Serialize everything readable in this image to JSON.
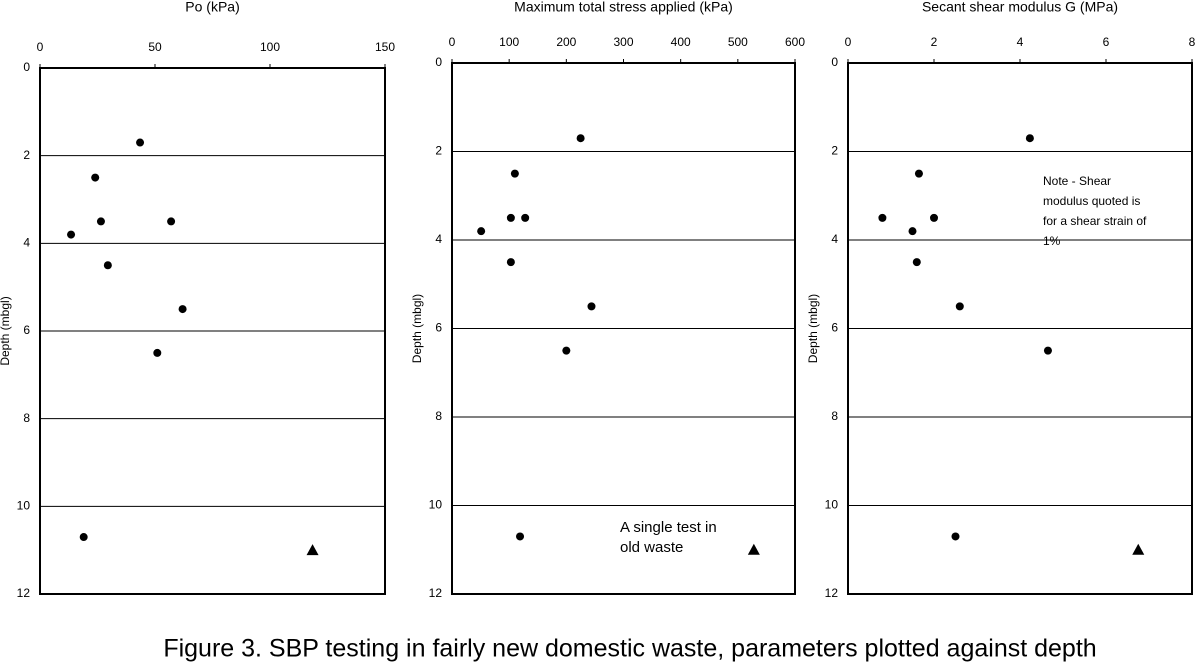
{
  "chart_data": [
    {
      "type": "scatter",
      "title": "Po (kPa)",
      "y_label": "Depth (mbgl)",
      "y_inverted": true,
      "x_axis_position": "top",
      "grid": true,
      "xlim": [
        0,
        150
      ],
      "xticks": [
        0,
        50,
        100,
        150
      ],
      "ylim": [
        0,
        12
      ],
      "yticks": [
        0,
        2,
        4,
        6,
        8,
        10,
        12
      ],
      "series": [
        {
          "marker": "circle",
          "color": "#000000",
          "x": [
            43.5,
            24,
            26.5,
            57,
            13.5,
            29.5,
            62,
            51,
            19
          ],
          "values": [
            1.7,
            2.5,
            3.5,
            3.5,
            3.8,
            4.5,
            5.5,
            6.5,
            10.7
          ]
        },
        {
          "marker": "triangle",
          "color": "#000000",
          "x": [
            118.5
          ],
          "values": [
            11.0
          ]
        }
      ]
    },
    {
      "type": "scatter",
      "title": "Maximum total stress applied (kPa)",
      "y_label": "Depth (mbgl)",
      "y_inverted": true,
      "x_axis_position": "top",
      "grid": true,
      "xlim": [
        0,
        600
      ],
      "xticks": [
        0,
        100,
        200,
        300,
        400,
        500,
        600
      ],
      "ylim": [
        0,
        12
      ],
      "yticks": [
        0,
        2,
        4,
        6,
        8,
        10,
        12
      ],
      "annotation": [
        "A single test in",
        "old waste"
      ],
      "series": [
        {
          "marker": "circle",
          "color": "#000000",
          "x": [
            225,
            110,
            103,
            128,
            51,
            103,
            244,
            200,
            119
          ],
          "values": [
            1.7,
            2.5,
            3.5,
            3.5,
            3.8,
            4.5,
            5.5,
            6.5,
            10.7
          ]
        },
        {
          "marker": "triangle",
          "color": "#000000",
          "x": [
            528
          ],
          "values": [
            11.0
          ]
        }
      ]
    },
    {
      "type": "scatter",
      "title": "Secant shear modulus G (MPa)",
      "y_label": "Depth (mbgl)",
      "y_inverted": true,
      "x_axis_position": "top",
      "grid": true,
      "xlim": [
        0,
        8
      ],
      "xticks": [
        0,
        2,
        4,
        6,
        8
      ],
      "ylim": [
        0,
        12
      ],
      "yticks": [
        0,
        2,
        4,
        6,
        8,
        10,
        12
      ],
      "annotation": [
        "Note - Shear",
        "modulus quoted is",
        "for a shear strain of",
        "1%"
      ],
      "series": [
        {
          "marker": "circle",
          "color": "#000000",
          "x": [
            4.23,
            1.65,
            0.8,
            2.0,
            1.5,
            1.6,
            2.6,
            4.65,
            2.5
          ],
          "values": [
            1.7,
            2.5,
            3.5,
            3.5,
            3.8,
            4.5,
            5.5,
            6.5,
            10.7
          ]
        },
        {
          "marker": "triangle",
          "color": "#000000",
          "x": [
            6.75
          ],
          "values": [
            11.0
          ]
        }
      ]
    }
  ],
  "caption": "Figure 3. SBP testing in fairly new domestic waste, parameters plotted against depth"
}
